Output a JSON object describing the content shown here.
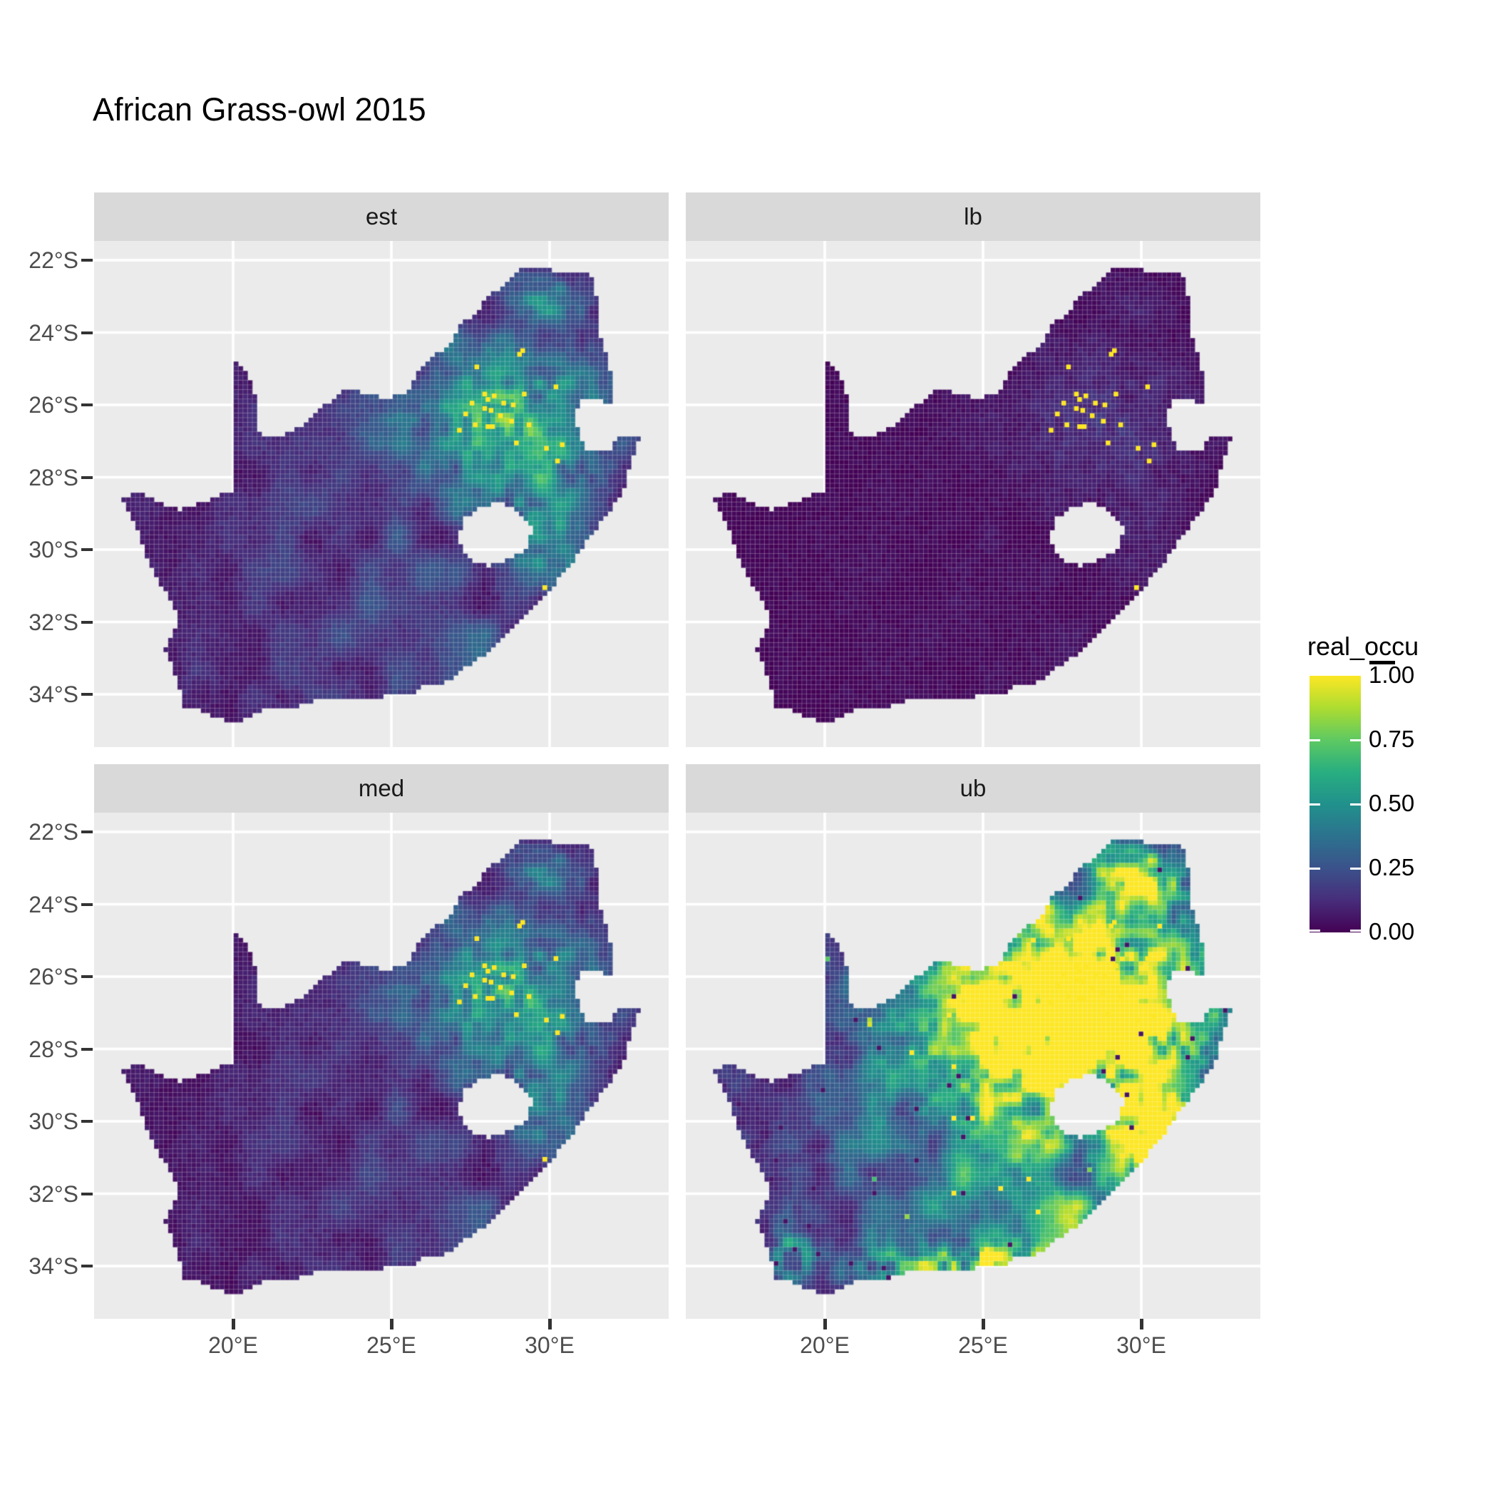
{
  "title": "African Grass-owl 2015",
  "facets": [
    {
      "key": "est",
      "label": "est"
    },
    {
      "key": "lb",
      "label": "lb"
    },
    {
      "key": "med",
      "label": "med"
    },
    {
      "key": "ub",
      "label": "ub"
    }
  ],
  "axes": {
    "x": {
      "ticks": [
        {
          "label": "20°E",
          "value": 20
        },
        {
          "label": "25°E",
          "value": 25
        },
        {
          "label": "30°E",
          "value": 30
        }
      ]
    },
    "y": {
      "ticks": [
        {
          "label": "22°S",
          "value": -22
        },
        {
          "label": "24°S",
          "value": -24
        },
        {
          "label": "26°S",
          "value": -26
        },
        {
          "label": "28°S",
          "value": -28
        },
        {
          "label": "30°S",
          "value": -30
        },
        {
          "label": "32°S",
          "value": -32
        },
        {
          "label": "34°S",
          "value": -34
        }
      ]
    }
  },
  "legend": {
    "title": "real_occu",
    "entries": [
      {
        "label": "1.00",
        "value": 1.0
      },
      {
        "label": "0.75",
        "value": 0.75
      },
      {
        "label": "0.50",
        "value": 0.5
      },
      {
        "label": "0.25",
        "value": 0.25
      },
      {
        "label": "0.00",
        "value": 0.0
      }
    ]
  },
  "colors": {
    "background": "#ffffff",
    "panel_bg": "#ebebeb",
    "grid": "#ffffff",
    "strip_bg": "#d9d9d9",
    "strip_text": "#1a1a1a",
    "axis_text": "#4d4d4d",
    "tick_mark": "#333333",
    "title_text": "#000000",
    "occurrence_dot": "#FDE725"
  },
  "chart_data": {
    "type": "heatmap",
    "subtype": "faceted_raster_map",
    "title": "African Grass-owl 2015",
    "region": "South Africa",
    "variable": "real_occu",
    "value_range": [
      0,
      1
    ],
    "facets": [
      "est",
      "lb",
      "med",
      "ub"
    ],
    "legend_ticks": [
      0.0,
      0.25,
      0.5,
      0.75,
      1.0
    ],
    "x_ticks_deg_east": [
      20,
      25,
      30
    ],
    "y_ticks_deg_south": [
      22,
      24,
      26,
      28,
      30,
      32,
      34
    ],
    "lon_range": [
      15.6,
      33.8
    ],
    "lat_range": [
      -35.6,
      -21.4
    ],
    "grid_cell_deg": {
      "lon": 0.1478,
      "lat": 0.1295
    },
    "viridis_stops": [
      "#440154",
      "#472D7B",
      "#3B528B",
      "#2C728E",
      "#21918C",
      "#28AE80",
      "#5EC962",
      "#ADDC30",
      "#FDE725"
    ],
    "outline": [
      [
        16.45,
        -28.6
      ],
      [
        17.1,
        -28.38
      ],
      [
        17.65,
        -28.72
      ],
      [
        18.25,
        -28.9
      ],
      [
        19.0,
        -28.72
      ],
      [
        19.6,
        -28.5
      ],
      [
        19.98,
        -28.4
      ],
      [
        19.98,
        -24.78
      ],
      [
        20.45,
        -25.1
      ],
      [
        20.68,
        -25.7
      ],
      [
        20.72,
        -26.2
      ],
      [
        20.85,
        -26.8
      ],
      [
        21.6,
        -26.85
      ],
      [
        22.1,
        -26.62
      ],
      [
        22.65,
        -26.12
      ],
      [
        23.0,
        -25.95
      ],
      [
        23.5,
        -25.58
      ],
      [
        24.1,
        -25.65
      ],
      [
        24.8,
        -25.8
      ],
      [
        25.45,
        -25.72
      ],
      [
        25.65,
        -25.48
      ],
      [
        25.95,
        -24.9
      ],
      [
        26.45,
        -24.6
      ],
      [
        26.9,
        -24.3
      ],
      [
        27.25,
        -23.7
      ],
      [
        27.65,
        -23.48
      ],
      [
        28.05,
        -23.0
      ],
      [
        28.4,
        -22.8
      ],
      [
        29.05,
        -22.2
      ],
      [
        29.45,
        -22.15
      ],
      [
        29.95,
        -22.22
      ],
      [
        30.35,
        -22.35
      ],
      [
        31.05,
        -22.32
      ],
      [
        31.3,
        -22.42
      ],
      [
        31.55,
        -23.2
      ],
      [
        31.56,
        -24.0
      ],
      [
        31.86,
        -24.7
      ],
      [
        31.98,
        -25.45
      ],
      [
        31.95,
        -25.95
      ],
      [
        31.3,
        -25.78
      ],
      [
        30.95,
        -25.92
      ],
      [
        30.8,
        -26.3
      ],
      [
        30.92,
        -26.82
      ],
      [
        31.15,
        -27.2
      ],
      [
        31.5,
        -27.3
      ],
      [
        31.96,
        -27.32
      ],
      [
        32.12,
        -26.86
      ],
      [
        32.89,
        -26.86
      ],
      [
        32.55,
        -27.6
      ],
      [
        32.35,
        -28.3
      ],
      [
        31.95,
        -28.9
      ],
      [
        31.3,
        -29.6
      ],
      [
        30.7,
        -30.4
      ],
      [
        30.0,
        -31.1
      ],
      [
        29.35,
        -31.75
      ],
      [
        28.7,
        -32.3
      ],
      [
        28.0,
        -32.85
      ],
      [
        27.4,
        -33.2
      ],
      [
        26.9,
        -33.55
      ],
      [
        26.4,
        -33.76
      ],
      [
        25.9,
        -33.76
      ],
      [
        25.65,
        -34.06
      ],
      [
        25.0,
        -34.02
      ],
      [
        24.2,
        -34.18
      ],
      [
        23.4,
        -34.08
      ],
      [
        22.6,
        -34.18
      ],
      [
        21.8,
        -34.42
      ],
      [
        20.9,
        -34.42
      ],
      [
        20.0,
        -34.82
      ],
      [
        19.4,
        -34.62
      ],
      [
        18.9,
        -34.4
      ],
      [
        18.45,
        -34.32
      ],
      [
        18.35,
        -33.92
      ],
      [
        18.05,
        -33.15
      ],
      [
        17.85,
        -32.75
      ],
      [
        18.28,
        -32.05
      ],
      [
        18.12,
        -31.55
      ],
      [
        17.62,
        -30.8
      ],
      [
        17.25,
        -30.2
      ],
      [
        16.95,
        -29.4
      ],
      [
        16.45,
        -28.6
      ]
    ],
    "lesotho_hole": [
      [
        27.05,
        -29.65
      ],
      [
        27.35,
        -29.1
      ],
      [
        27.78,
        -28.85
      ],
      [
        28.38,
        -28.65
      ],
      [
        28.98,
        -28.95
      ],
      [
        29.45,
        -29.35
      ],
      [
        29.3,
        -29.95
      ],
      [
        28.7,
        -30.25
      ],
      [
        28.05,
        -30.48
      ],
      [
        27.45,
        -30.25
      ],
      [
        27.05,
        -29.65
      ]
    ],
    "occurrence_points": [
      [
        29.05,
        -24.6,
        1
      ],
      [
        29.15,
        -24.5,
        1
      ],
      [
        27.7,
        -24.95,
        1
      ],
      [
        29.2,
        -25.7,
        1
      ],
      [
        27.95,
        -25.7,
        1
      ],
      [
        28.05,
        -25.85,
        1
      ],
      [
        28.25,
        -25.75,
        1
      ],
      [
        27.55,
        -25.95,
        1
      ],
      [
        28.55,
        -25.95,
        1
      ],
      [
        28.85,
        -26.0,
        1
      ],
      [
        27.95,
        -26.1,
        1
      ],
      [
        28.15,
        -26.15,
        1
      ],
      [
        27.35,
        -26.25,
        1
      ],
      [
        28.45,
        -26.3,
        1
      ],
      [
        28.8,
        -26.45,
        1
      ],
      [
        27.65,
        -26.55,
        1
      ],
      [
        28.05,
        -26.6,
        2
      ],
      [
        29.35,
        -26.55,
        1
      ],
      [
        27.15,
        -26.7,
        1
      ],
      [
        30.2,
        -25.5,
        1
      ],
      [
        28.95,
        -27.05,
        1
      ],
      [
        29.9,
        -27.2,
        1
      ],
      [
        30.4,
        -27.1,
        1
      ],
      [
        30.25,
        -27.55,
        1
      ],
      [
        29.85,
        -31.05,
        1
      ],
      [
        25.55,
        -34.08,
        1
      ]
    ],
    "hotspots": {
      "gauteng": {
        "cx": 28.6,
        "cy": -26.4,
        "sx": 2.2,
        "sy": 1.5
      },
      "core": {
        "cx": 27.7,
        "cy": -27.2,
        "sx": 2.8,
        "sy": 2.1
      },
      "drak": {
        "cx": 29.6,
        "cy": -29.5,
        "sx": 1.15,
        "sy": 1.0
      },
      "kzn": {
        "cx": 30.4,
        "cy": -30.2,
        "sx": 1.2,
        "sy": 1.5
      },
      "limpopo": {
        "cx": 29.7,
        "cy": -23.6,
        "sx": 1.25,
        "sy": 0.8
      },
      "soutpansberg": {
        "cx": 30.0,
        "cy": -23.0,
        "sx": 0.9,
        "sy": 0.5
      },
      "midlands": {
        "cx": 25.5,
        "cy": -29.5,
        "sx": 4.5,
        "sy": 3.2
      },
      "eastcape": {
        "cx": 27.6,
        "cy": -32.4,
        "sx": 2.4,
        "sy": 1.1
      },
      "southcoast": {
        "cx": 24.8,
        "cy": -34.0,
        "sx": 2.2,
        "sy": 0.45
      },
      "capetown": {
        "cx": 19.0,
        "cy": -33.9,
        "sx": 0.5,
        "sy": 0.6
      }
    },
    "facet_fields": {
      "est": {
        "base": 0.06,
        "gauteng": 0.5,
        "drak": 0.33,
        "soutpansberg": 0.3,
        "midlands": 0.1,
        "eastcape": 0.13,
        "southcoast": 0.07,
        "capetown": 0.06,
        "eastNoise": 0.16,
        "jitter": 0.02
      },
      "lb": {
        "base": 0.015,
        "gauteng": 0.1,
        "drak": 0.05,
        "soutpansberg": 0.04,
        "midlands": 0.01,
        "eastcape": 0.015,
        "southcoast": 0.012,
        "capetown": 0.0,
        "eastNoise": 0.03,
        "jitter": 0.006
      },
      "med": {
        "base": 0.045,
        "gauteng": 0.45,
        "drak": 0.29,
        "soutpansberg": 0.26,
        "midlands": 0.08,
        "eastcape": 0.11,
        "southcoast": 0.05,
        "capetown": 0.04,
        "eastNoise": 0.12,
        "jitter": 0.02
      },
      "ub": {
        "base": 0.1,
        "core": 1.3,
        "gauteng": 0,
        "drak": 0.95,
        "kzn": 1.0,
        "limpopo": 0.85,
        "soutpansberg": 0.7,
        "midlands": 0.25,
        "eastcape": 0.4,
        "southcoast": 0.8,
        "capetown": 0.55,
        "eastNoise": 0.34,
        "jitter": 0.1,
        "speckle": true
      }
    }
  }
}
